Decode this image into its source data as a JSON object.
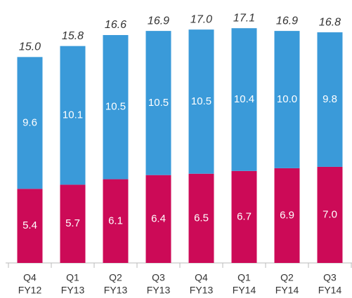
{
  "chart_data": {
    "type": "stacked_bar",
    "categories": [
      [
        "Q4",
        "FY12"
      ],
      [
        "Q1",
        "FY13"
      ],
      [
        "Q2",
        "FY13"
      ],
      [
        "Q3",
        "FY13"
      ],
      [
        "Q4",
        "FY13"
      ],
      [
        "Q1",
        "FY14"
      ],
      [
        "Q2",
        "FY14"
      ],
      [
        "Q3",
        "FY14"
      ]
    ],
    "series": [
      {
        "color": "#cc0a57",
        "values": [
          5.4,
          5.7,
          6.1,
          6.4,
          6.5,
          6.7,
          6.9,
          7.0
        ],
        "value_labels": [
          "5.4",
          "5.7",
          "6.1",
          "6.4",
          "6.5",
          "6.7",
          "6.9",
          "7.0"
        ]
      },
      {
        "color": "#3a9ad9",
        "values": [
          9.6,
          10.1,
          10.5,
          10.5,
          10.5,
          10.4,
          10.0,
          9.8
        ],
        "value_labels": [
          "9.6",
          "10.1",
          "10.5",
          "10.5",
          "10.5",
          "10.4",
          "10.0",
          "9.8"
        ]
      }
    ],
    "totals": [
      15.0,
      15.8,
      16.6,
      16.9,
      17.0,
      17.1,
      16.9,
      16.8
    ],
    "total_labels": [
      "15.0",
      "15.8",
      "16.6",
      "16.9",
      "17.0",
      "17.1",
      "16.9",
      "16.8"
    ],
    "ylim": [
      0,
      19
    ]
  }
}
